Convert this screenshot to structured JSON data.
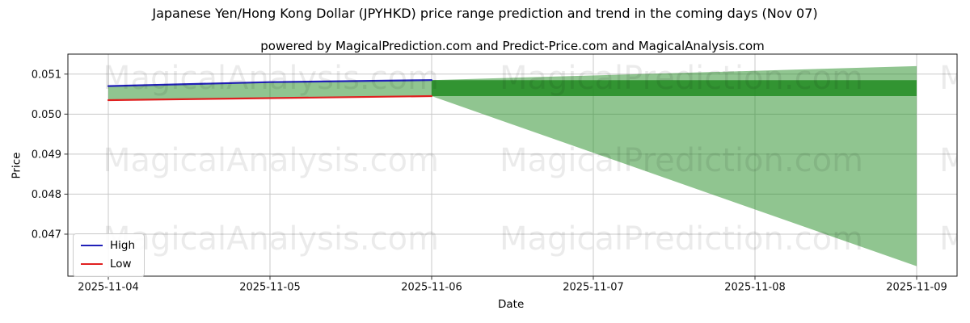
{
  "figure": {
    "title": "Japanese Yen/Hong Kong Dollar (JPYHKD) price range prediction and trend in the coming days (Nov 07)",
    "subtitle": "powered by MagicalPrediction.com and Predict-Price.com and MagicalAnalysis.com"
  },
  "chart_data": {
    "type": "line",
    "title": "Japanese Yen/Hong Kong Dollar (JPYHKD) price range prediction and trend in the coming days (Nov 07)",
    "subtitle": "powered by MagicalPrediction.com and Predict-Price.com and MagicalAnalysis.com",
    "xlabel": "Date",
    "ylabel": "Price",
    "x_tick_labels": [
      "2025-11-04",
      "2025-11-05",
      "2025-11-06",
      "2025-11-07",
      "2025-11-08",
      "2025-11-09"
    ],
    "y_tick_values": [
      0.051,
      0.05,
      0.049,
      0.048,
      0.047
    ],
    "y_tick_labels": [
      "0.051",
      "0.050",
      "0.049",
      "0.048",
      "0.047"
    ],
    "xlim": [
      -0.25,
      5.25
    ],
    "ylim": [
      0.04595,
      0.0515
    ],
    "grid": true,
    "legend_position": "lower left",
    "series": [
      {
        "name": "High",
        "color": "#2020b8",
        "x": [
          0,
          1,
          2
        ],
        "values": [
          0.0507,
          0.0508,
          0.05085
        ]
      },
      {
        "name": "Low",
        "color": "#e02020",
        "x": [
          0,
          1,
          2
        ],
        "values": [
          0.05035,
          0.0504,
          0.05045
        ]
      }
    ],
    "bands": [
      {
        "name": "historical-range-band",
        "color": "rgba(34,139,34,0.5)",
        "x": [
          0,
          1,
          2
        ],
        "upper": [
          0.0507,
          0.0508,
          0.05085
        ],
        "lower": [
          0.05035,
          0.0504,
          0.05045
        ]
      },
      {
        "name": "prediction-fan-band",
        "color": "rgba(34,139,34,0.5)",
        "x": [
          2,
          5
        ],
        "upper": [
          0.05085,
          0.0512
        ],
        "lower": [
          0.05045,
          0.0462
        ]
      },
      {
        "name": "prediction-core-band",
        "color": "rgba(34,139,34,0.85)",
        "x": [
          2,
          5
        ],
        "upper": [
          0.05085,
          0.05085
        ],
        "lower": [
          0.05045,
          0.05045
        ]
      }
    ],
    "legend": [
      {
        "label": "High",
        "color": "#2020b8"
      },
      {
        "label": "Low",
        "color": "#e02020"
      }
    ],
    "watermarks": {
      "color": "rgba(0,0,0,0.08)",
      "font_size_px": 40,
      "row_centers_y": [
        97,
        199,
        296
      ],
      "columns": [
        {
          "text": "MagicalAnalysis.com",
          "center_x": 335
        },
        {
          "text": "MagicalPrediction.com",
          "center_x": 843
        },
        {
          "text": "MagicalAnalysis.com",
          "center_x": 1370
        }
      ]
    },
    "style": {
      "grid_color": "#c8c8c8",
      "spine_color": "#1a1a1a",
      "tick_color": "#333333",
      "tick_label_color": "#111111",
      "tick_font_px": 13
    }
  }
}
